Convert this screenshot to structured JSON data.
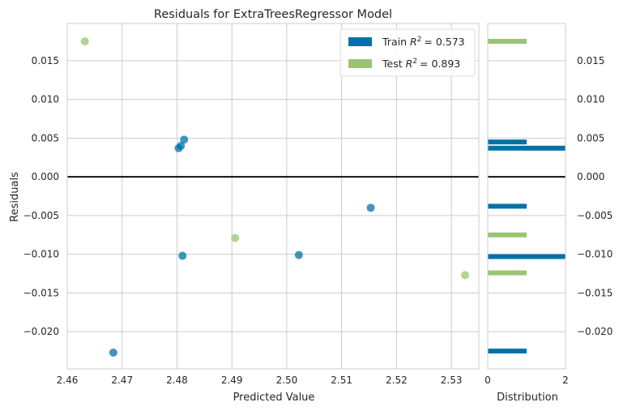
{
  "chart_data": {
    "type": "scatter",
    "title": "Residuals for ExtraTreesRegressor Model",
    "xlabel": "Predicted Value",
    "ylabel": "Residuals",
    "xlim": [
      2.46,
      2.535
    ],
    "ylim": [
      -0.0248,
      0.0198
    ],
    "x_ticks": [
      "2.46",
      "2.47",
      "2.48",
      "2.49",
      "2.50",
      "2.51",
      "2.52",
      "2.53"
    ],
    "x_tick_values": [
      2.46,
      2.47,
      2.48,
      2.49,
      2.5,
      2.51,
      2.52,
      2.53
    ],
    "y_ticks": [
      "−0.020",
      "−0.015",
      "−0.010",
      "−0.005",
      "0.000",
      "0.005",
      "0.010",
      "0.015"
    ],
    "y_tick_values": [
      -0.02,
      -0.015,
      -0.01,
      -0.005,
      0.0,
      0.005,
      0.01,
      0.015
    ],
    "grid": true,
    "legend_position": "top-right",
    "series": [
      {
        "name": "Train",
        "legend": {
          "prefix": "Train ",
          "r2": "= 0.573"
        },
        "color": "#0072a8",
        "points": [
          {
            "x": 2.4684,
            "y": -0.0227
          },
          {
            "x": 2.4803,
            "y": 0.0037
          },
          {
            "x": 2.4807,
            "y": 0.004
          },
          {
            "x": 2.4813,
            "y": 0.0048
          },
          {
            "x": 2.481,
            "y": -0.0102
          },
          {
            "x": 2.5022,
            "y": -0.0101
          },
          {
            "x": 2.5153,
            "y": -0.004
          }
        ]
      },
      {
        "name": "Test",
        "legend": {
          "prefix": "Test ",
          "r2": "= 0.893"
        },
        "color": "#9ac474",
        "points": [
          {
            "x": 2.4632,
            "y": 0.0175
          },
          {
            "x": 2.4906,
            "y": -0.0079
          },
          {
            "x": 2.5325,
            "y": -0.0127
          }
        ]
      }
    ],
    "distribution": {
      "xlabel": "Distribution",
      "x_ticks": [
        "0",
        "2"
      ],
      "x_tick_values": [
        0,
        2
      ],
      "xlim": [
        0,
        2
      ],
      "bars": [
        {
          "series": "Test",
          "y": 0.0175,
          "count": 1
        },
        {
          "series": "Test",
          "y": -0.0075,
          "count": 1
        },
        {
          "series": "Test",
          "y": -0.0124,
          "count": 1
        },
        {
          "series": "Train",
          "y": 0.0037,
          "count": 2
        },
        {
          "series": "Train",
          "y": 0.0045,
          "count": 1
        },
        {
          "series": "Train",
          "y": -0.0038,
          "count": 1
        },
        {
          "series": "Train",
          "y": -0.0103,
          "count": 2
        },
        {
          "series": "Train",
          "y": -0.0225,
          "count": 1
        }
      ]
    }
  }
}
